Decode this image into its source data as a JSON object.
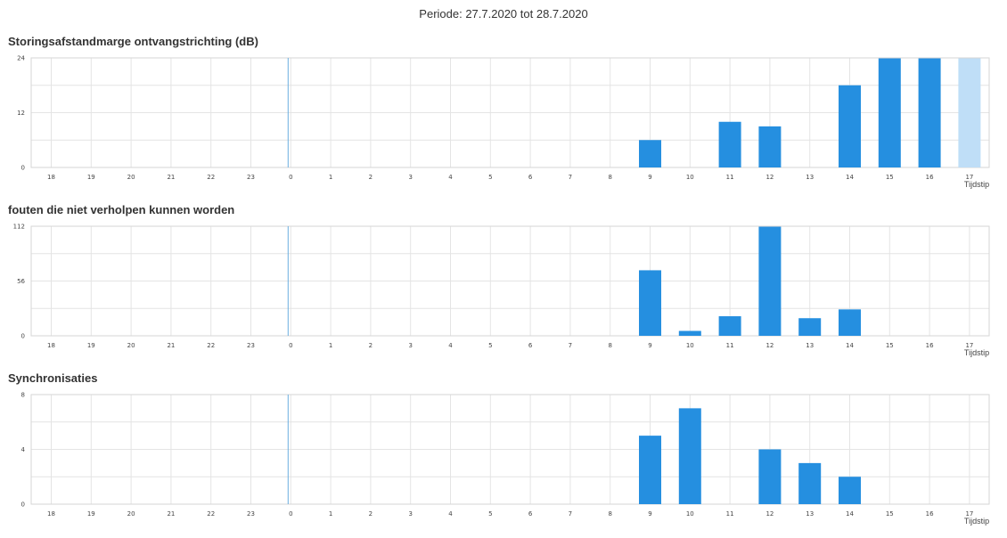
{
  "period": "Periode: 27.7.2020 tot 28.7.2020",
  "colors": {
    "bar": "#258fe0",
    "bar_light": "#bfdef7",
    "marker": "#6aaee0",
    "grid": "#e4e4e4"
  },
  "chart_data": [
    {
      "type": "bar",
      "title": "Storingsafstandmarge ontvangstrichting (dB)",
      "xlabel": "Tijdstip",
      "ylabel": "",
      "categories": [
        "18",
        "19",
        "20",
        "21",
        "22",
        "23",
        "0",
        "1",
        "2",
        "3",
        "4",
        "5",
        "6",
        "7",
        "8",
        "9",
        "10",
        "11",
        "12",
        "13",
        "14",
        "15",
        "16",
        "17"
      ],
      "values": [
        0,
        0,
        0,
        0,
        0,
        0,
        0,
        0,
        0,
        0,
        0,
        0,
        0,
        0,
        0,
        6,
        0,
        10,
        9,
        0,
        18,
        24,
        24,
        24
      ],
      "highlight_last": true,
      "yticks": [
        "0",
        "12",
        "24"
      ],
      "ylim": [
        0,
        24
      ],
      "marker_category": "0",
      "grid": true
    },
    {
      "type": "bar",
      "title": "fouten die niet verholpen kunnen worden",
      "xlabel": "Tijdstip",
      "ylabel": "",
      "categories": [
        "18",
        "19",
        "20",
        "21",
        "22",
        "23",
        "0",
        "1",
        "2",
        "3",
        "4",
        "5",
        "6",
        "7",
        "8",
        "9",
        "10",
        "11",
        "12",
        "13",
        "14",
        "15",
        "16",
        "17"
      ],
      "values": [
        0,
        0,
        0,
        0,
        0,
        0,
        0,
        0,
        0,
        0,
        0,
        0,
        0,
        0,
        0,
        67,
        5,
        20,
        112,
        18,
        27,
        0,
        0,
        0
      ],
      "highlight_last": false,
      "yticks": [
        "0",
        "56",
        "112"
      ],
      "ylim": [
        0,
        112
      ],
      "marker_category": "0",
      "grid": true
    },
    {
      "type": "bar",
      "title": "Synchronisaties",
      "xlabel": "Tijdstip",
      "ylabel": "",
      "categories": [
        "18",
        "19",
        "20",
        "21",
        "22",
        "23",
        "0",
        "1",
        "2",
        "3",
        "4",
        "5",
        "6",
        "7",
        "8",
        "9",
        "10",
        "11",
        "12",
        "13",
        "14",
        "15",
        "16",
        "17"
      ],
      "values": [
        0,
        0,
        0,
        0,
        0,
        0,
        0,
        0,
        0,
        0,
        0,
        0,
        0,
        0,
        0,
        5,
        7,
        0,
        4,
        3,
        2,
        0,
        0,
        0
      ],
      "highlight_last": false,
      "yticks": [
        "0",
        "4",
        "8"
      ],
      "ylim": [
        0,
        8
      ],
      "marker_category": "0",
      "grid": true
    }
  ]
}
